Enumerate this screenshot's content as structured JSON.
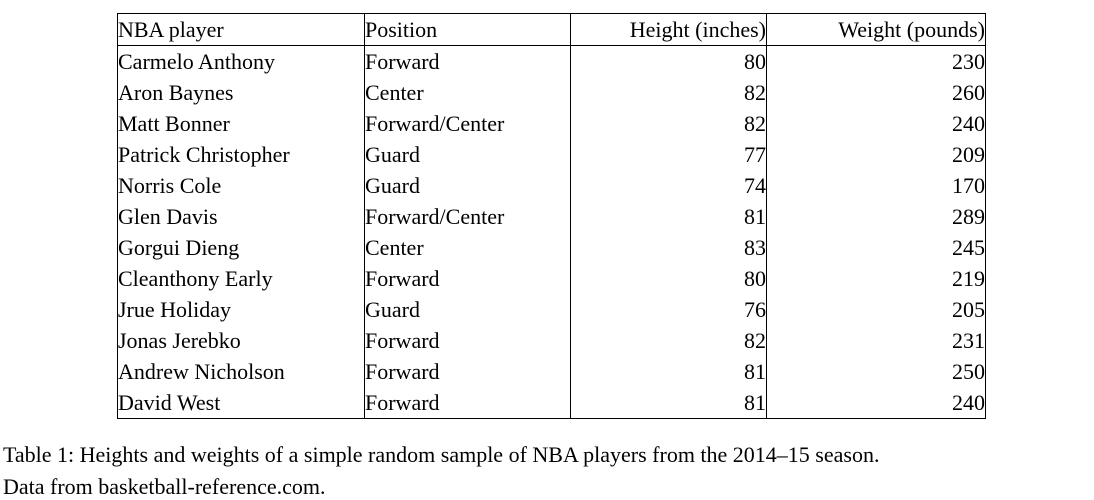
{
  "page": {
    "background_color": "#ffffff",
    "text_color": "#000000",
    "border_color": "#000000"
  },
  "table": {
    "headers": [
      "NBA player",
      "Position",
      "Height (inches)",
      "Weight (pounds)"
    ],
    "rows": [
      [
        "Carmelo Anthony",
        "Forward",
        "80",
        "230"
      ],
      [
        "Aron Baynes",
        "Center",
        "82",
        "260"
      ],
      [
        "Matt Bonner",
        "Forward/Center",
        "82",
        "240"
      ],
      [
        "Patrick Christopher",
        "Guard",
        "77",
        "209"
      ],
      [
        "Norris Cole",
        "Guard",
        "74",
        "170"
      ],
      [
        "Glen Davis",
        "Forward/Center",
        "81",
        "289"
      ],
      [
        "Gorgui Dieng",
        "Center",
        "83",
        "245"
      ],
      [
        "Cleanthony Early",
        "Forward",
        "80",
        "219"
      ],
      [
        "Jrue Holiday",
        "Guard",
        "76",
        "205"
      ],
      [
        "Jonas Jerebko",
        "Forward",
        "82",
        "231"
      ],
      [
        "Andrew Nicholson",
        "Forward",
        "81",
        "250"
      ],
      [
        "David West",
        "Forward",
        "81",
        "240"
      ]
    ]
  },
  "caption": {
    "line1": "Table 1: Heights and weights of a simple random sample of NBA players from the 2014–15 season.",
    "line2": "Data from basketball-reference.com."
  }
}
